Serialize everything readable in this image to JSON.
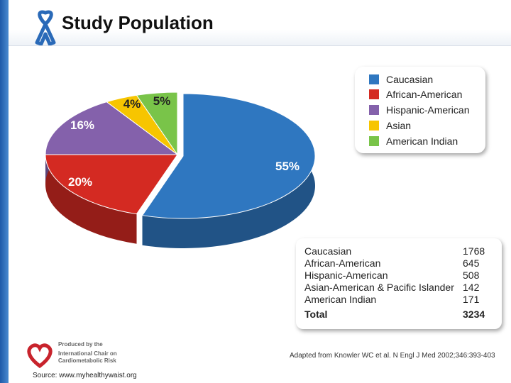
{
  "header": {
    "title": "Study Population"
  },
  "colors": {
    "caucasian": "#2f77c0",
    "african_american": "#d42a22",
    "hispanic_american": "#8461ab",
    "asian": "#f7c500",
    "american_indian": "#79c449"
  },
  "chart_data": {
    "type": "pie",
    "categories": [
      "Caucasian",
      "African-American",
      "Hispanic-American",
      "Asian",
      "American Indian"
    ],
    "values": [
      55,
      20,
      16,
      4,
      5
    ],
    "labels": [
      "55%",
      "20%",
      "16%",
      "4%",
      "5%"
    ],
    "legend_position": "top-right"
  },
  "legend": {
    "items": [
      {
        "label": "Caucasian",
        "color": "#2f77c0"
      },
      {
        "label": "African-American",
        "color": "#d42a22"
      },
      {
        "label": "Hispanic-American",
        "color": "#8461ab"
      },
      {
        "label": "Asian",
        "color": "#f7c500"
      },
      {
        "label": "American Indian",
        "color": "#79c449"
      }
    ]
  },
  "table": {
    "rows": [
      {
        "name": "Caucasian",
        "value": "1768"
      },
      {
        "name": "African-American",
        "value": "645"
      },
      {
        "name": "Hispanic-American",
        "value": "508"
      },
      {
        "name": "Asian-American & Pacific Islander",
        "value": "142"
      },
      {
        "name": "American Indian",
        "value": "171"
      }
    ],
    "total_label": "Total",
    "total_value": "3234"
  },
  "citation": "Adapted from Knowler WC et al. N Engl J Med 2002;346:393-403",
  "footer": {
    "logo_line1": "Produced by the",
    "logo_line2": "International Chair on",
    "logo_line3": "Cardiometabolic Risk",
    "source": "Source: www.myhealthywaist.org"
  }
}
